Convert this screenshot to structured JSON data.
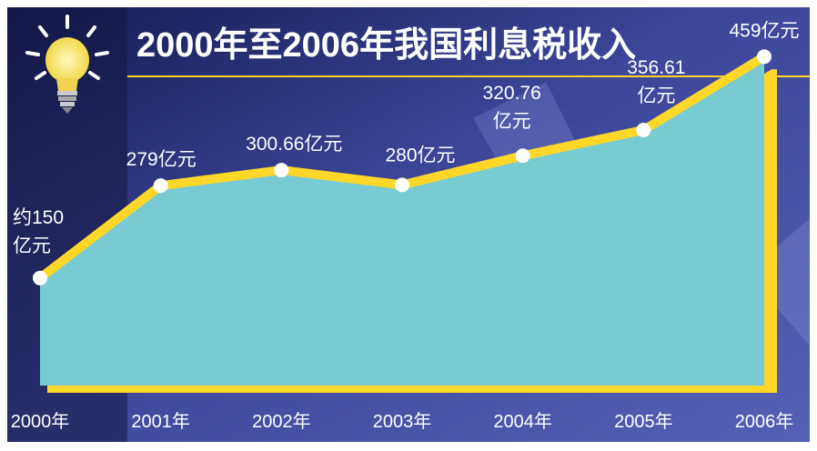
{
  "colors": {
    "background_dark": "#1a1f5c",
    "background_mid": "#4a55a8",
    "area_fill": "#78cbd3",
    "line": "#ffd728",
    "marker": "#ffffff",
    "title": "#ffffff",
    "label": "#ffffff",
    "bulb": "#fff19a"
  },
  "icons": {
    "decoration": "light-bulb-icon"
  },
  "chart_data": {
    "type": "area",
    "title": "2000年至2006年我国利息税收入",
    "categories": [
      "2000年",
      "2001年",
      "2002年",
      "2003年",
      "2004年",
      "2005年",
      "2006年"
    ],
    "values": [
      150,
      279,
      300.66,
      280,
      320.76,
      356.61,
      459
    ],
    "data_labels": [
      [
        "约150",
        "亿元"
      ],
      [
        "279亿元"
      ],
      [
        "300.66亿元"
      ],
      [
        "280亿元"
      ],
      [
        "320.76",
        "亿元"
      ],
      [
        "356.61",
        "亿元"
      ],
      [
        "459亿元"
      ]
    ],
    "unit": "亿元",
    "ylim": [
      0,
      500
    ],
    "grid": false,
    "legend": "none"
  }
}
